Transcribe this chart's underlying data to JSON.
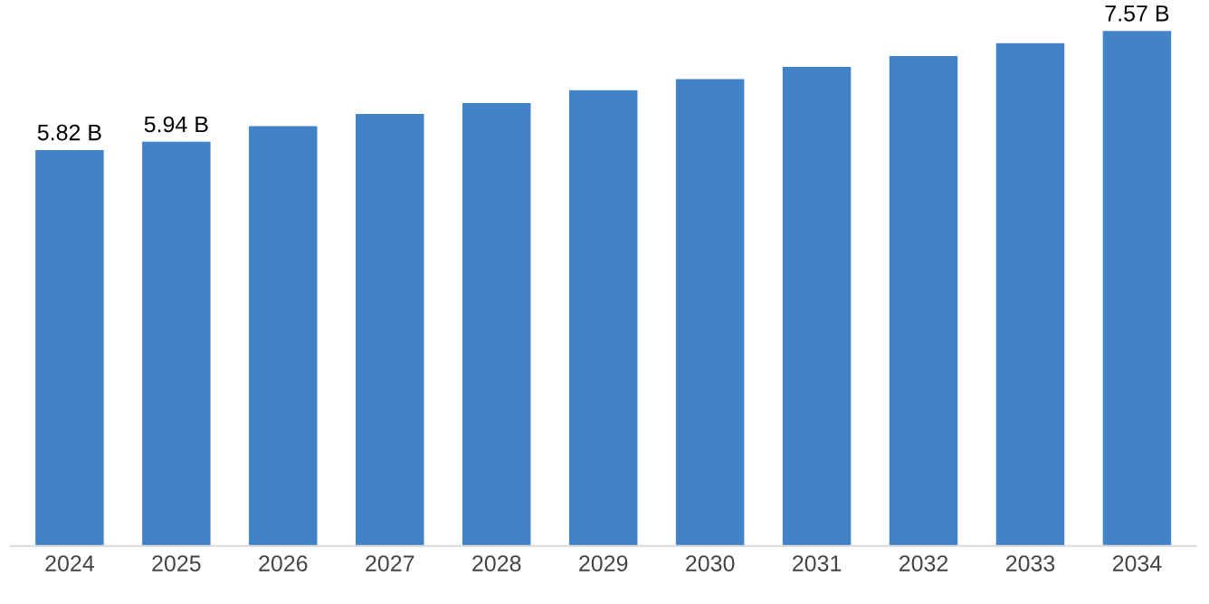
{
  "chart_data": {
    "type": "bar",
    "categories": [
      "2024",
      "2025",
      "2026",
      "2027",
      "2028",
      "2029",
      "2030",
      "2031",
      "2032",
      "2033",
      "2034"
    ],
    "values": [
      5.82,
      5.94,
      6.17,
      6.35,
      6.51,
      6.7,
      6.86,
      7.04,
      7.2,
      7.39,
      7.57
    ],
    "value_labels": [
      "5.82 B",
      "5.94 B",
      null,
      null,
      null,
      null,
      null,
      null,
      null,
      null,
      "7.57 B"
    ],
    "color": "#4282c6",
    "grid": false,
    "legend": false
  }
}
